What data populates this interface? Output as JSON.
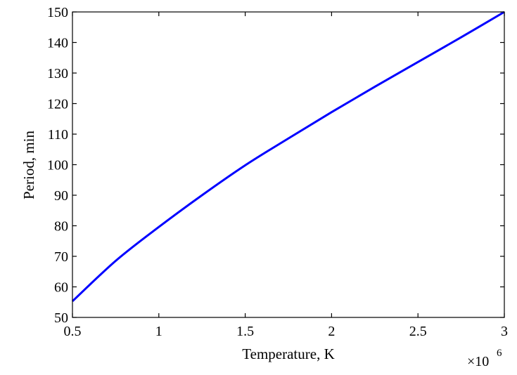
{
  "chart_data": {
    "type": "line",
    "title": "",
    "xlabel": "Temperature, K",
    "ylabel": "Period, min",
    "x_multiplier_label": "×10",
    "x_multiplier_exponent": "6",
    "xlim": [
      0.5,
      3
    ],
    "ylim": [
      50,
      150
    ],
    "xticks": [
      0.5,
      1,
      1.5,
      2,
      2.5,
      3
    ],
    "xtick_labels": [
      "0.5",
      "1",
      "1.5",
      "2",
      "2.5",
      "3"
    ],
    "yticks": [
      50,
      60,
      70,
      80,
      90,
      100,
      110,
      120,
      130,
      140,
      150
    ],
    "ytick_labels": [
      "50",
      "60",
      "70",
      "80",
      "90",
      "100",
      "110",
      "120",
      "130",
      "140",
      "150"
    ],
    "grid": false,
    "series": [
      {
        "color": "#0000ff",
        "x": [
          0.5,
          0.75,
          1.0,
          1.25,
          1.5,
          1.75,
          2.0,
          2.25,
          2.5,
          2.75,
          3.0
        ],
        "y": [
          55.3,
          68.5,
          79.6,
          90.0,
          99.8,
          108.6,
          117.2,
          125.5,
          133.6,
          141.7,
          150.0
        ]
      }
    ]
  }
}
